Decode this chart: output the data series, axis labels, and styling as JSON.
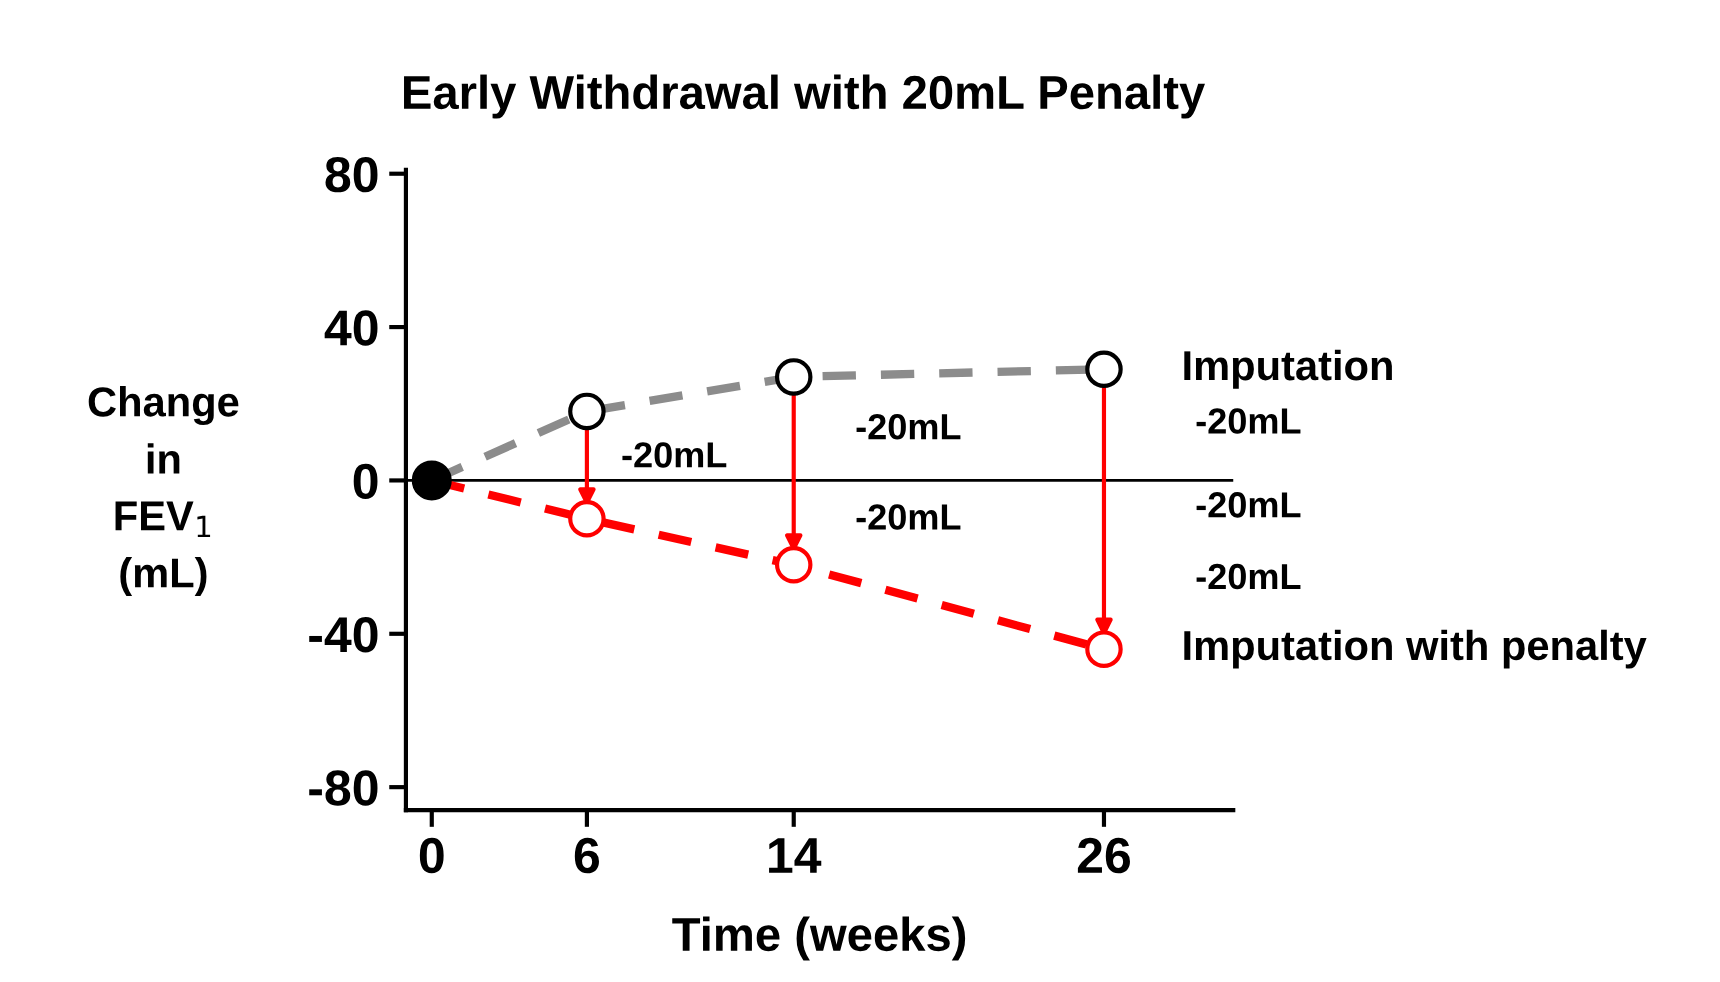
{
  "chart_data": {
    "type": "line",
    "title": "Early Withdrawal with 20mL Penalty",
    "xlabel": "Time (weeks)",
    "ylabel": "Change\nin\nFEV$_{1}$\n(mL)",
    "series": [
      {
        "name": "Imputation",
        "color": "#8c8c8c",
        "x": [
          0,
          6,
          14,
          26
        ],
        "values": [
          0,
          18,
          27,
          29
        ],
        "line_style": "dashed",
        "marker": "circle"
      },
      {
        "name": "Imputation with penalty",
        "color": "#ff0000",
        "x": [
          0,
          6,
          14,
          26
        ],
        "values": [
          0,
          -10,
          -22,
          -44
        ],
        "line_style": "dashed",
        "marker": "circle"
      },
      {
        "type": "scatter",
        "color": "#000000",
        "x": [
          0
        ],
        "values": [
          0
        ],
        "marker": "circle"
      }
    ],
    "xlim": [
      -1,
      31
    ],
    "xticks": [
      0,
      6,
      14,
      26
    ],
    "ylim": [
      -86,
      81
    ],
    "yticks": [
      -80,
      -40,
      0,
      40,
      80
    ],
    "ref_lines": [
      {
        "axis": "y",
        "value": 0,
        "color": "#000000"
      }
    ],
    "annotations": [
      "-20mL",
      "-20mL",
      "-20mL",
      "-20mL",
      "-20mL",
      "-20mL"
    ],
    "grid": false,
    "legend": "right"
  }
}
